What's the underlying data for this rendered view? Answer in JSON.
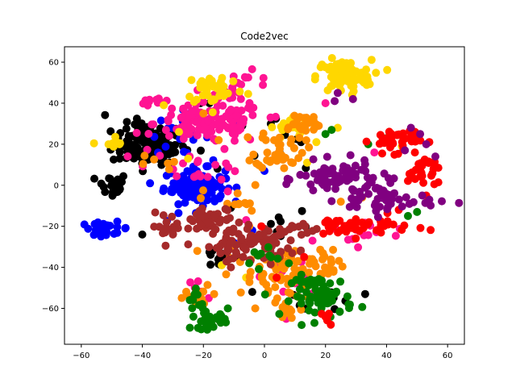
{
  "chart_data": {
    "type": "scatter",
    "title": "Code2vec",
    "xlabel": "",
    "ylabel": "",
    "xlim": [
      -65.5,
      65.5
    ],
    "ylim": [
      -77.5,
      67.5
    ],
    "xticks": [
      -60,
      -40,
      -20,
      0,
      20,
      40,
      60
    ],
    "yticks": [
      -60,
      -40,
      -20,
      0,
      20,
      40,
      60
    ],
    "xtick_labels": [
      "−60",
      "−40",
      "−20",
      "0",
      "20",
      "40",
      "60"
    ],
    "ytick_labels": [
      "−60",
      "−40",
      "−20",
      "0",
      "20",
      "40",
      "60"
    ],
    "grid": false,
    "legend": "none",
    "series": [
      {
        "color": "#000000",
        "clusters": [
          {
            "cx": -38,
            "cy": 20,
            "sx": 6,
            "sy": 5,
            "n": 120
          },
          {
            "cx": -50,
            "cy": 0,
            "sx": 2.5,
            "sy": 3,
            "n": 25
          },
          {
            "cx": -14,
            "cy": -35,
            "sx": 4,
            "sy": 3,
            "n": 12
          },
          {
            "cx": 20,
            "cy": -55,
            "sx": 6,
            "sy": 4,
            "n": 10
          },
          {
            "cx": 5,
            "cy": -20,
            "sx": 5,
            "sy": 5,
            "n": 8
          },
          {
            "cx": 0,
            "cy": 25,
            "sx": 15,
            "sy": 8,
            "n": 10
          }
        ],
        "points": [
          [
            -40,
            -24
          ],
          [
            -11,
            -11
          ],
          [
            -21,
            40
          ],
          [
            -18,
            40
          ],
          [
            33,
            -53
          ],
          [
            5,
            16
          ],
          [
            12,
            21
          ],
          [
            -4,
            -52
          ]
        ]
      },
      {
        "color": "#0000ff",
        "clusters": [
          {
            "cx": -23,
            "cy": 0,
            "sx": 5,
            "sy": 4,
            "n": 90
          },
          {
            "cx": -52,
            "cy": -21,
            "sx": 4,
            "sy": 1.5,
            "n": 25
          },
          {
            "cx": -28,
            "cy": 25,
            "sx": 5,
            "sy": 5,
            "n": 20
          },
          {
            "cx": -20,
            "cy": -10,
            "sx": 6,
            "sy": 4,
            "n": 12
          }
        ],
        "points": [
          [
            0,
            7
          ],
          [
            -10,
            -28
          ],
          [
            -9,
            29
          ],
          [
            -4,
            -22
          ]
        ]
      },
      {
        "color": "#ff1493",
        "clusters": [
          {
            "cx": -18,
            "cy": 30,
            "sx": 9,
            "sy": 5,
            "n": 120
          },
          {
            "cx": -35,
            "cy": 41,
            "sx": 3,
            "sy": 1.2,
            "n": 12
          },
          {
            "cx": -22,
            "cy": 10,
            "sx": 8,
            "sy": 4,
            "n": 20
          },
          {
            "cx": -7,
            "cy": 47,
            "sx": 5,
            "sy": 4,
            "n": 20
          },
          {
            "cx": 30,
            "cy": -23,
            "sx": 10,
            "sy": 3,
            "n": 15
          },
          {
            "cx": 10,
            "cy": -45,
            "sx": 5,
            "sy": 5,
            "n": 10
          },
          {
            "cx": -23,
            "cy": -50,
            "sx": 2,
            "sy": 3,
            "n": 6
          }
        ],
        "points": [
          [
            20,
            40
          ],
          [
            2,
            33
          ],
          [
            -12,
            -3
          ],
          [
            36,
            16
          ],
          [
            -6,
            -17
          ]
        ]
      },
      {
        "color": "#ffd700",
        "clusters": [
          {
            "cx": 26,
            "cy": 53,
            "sx": 4.5,
            "sy": 4,
            "n": 90
          },
          {
            "cx": -16,
            "cy": 47,
            "sx": 5,
            "sy": 4,
            "n": 35
          },
          {
            "cx": 10,
            "cy": 28,
            "sx": 4,
            "sy": 3,
            "n": 20
          },
          {
            "cx": -50,
            "cy": 20,
            "sx": 2,
            "sy": 2,
            "n": 8
          }
        ],
        "points": [
          [
            24,
            28
          ],
          [
            45,
            19
          ],
          [
            -25,
            13
          ],
          [
            -28,
            26
          ],
          [
            14,
            11
          ],
          [
            -33,
            39
          ],
          [
            -6,
            -45
          ],
          [
            17,
            21
          ],
          [
            -14,
            -39
          ]
        ]
      },
      {
        "color": "#ff8c00",
        "clusters": [
          {
            "cx": 5,
            "cy": 18,
            "sx": 4,
            "sy": 5,
            "n": 40
          },
          {
            "cx": 12,
            "cy": 30,
            "sx": 4,
            "sy": 3,
            "n": 25
          },
          {
            "cx": 2,
            "cy": -45,
            "sx": 8,
            "sy": 5,
            "n": 50
          },
          {
            "cx": 14,
            "cy": -37,
            "sx": 6,
            "sy": 4,
            "n": 30
          },
          {
            "cx": -10,
            "cy": -8,
            "sx": 5,
            "sy": 4,
            "n": 12
          },
          {
            "cx": -22,
            "cy": -55,
            "sx": 4,
            "sy": 3,
            "n": 12
          },
          {
            "cx": 8,
            "cy": -60,
            "sx": 4,
            "sy": 3,
            "n": 10
          },
          {
            "cx": -33,
            "cy": 10,
            "sx": 3,
            "sy": 3,
            "n": 6
          }
        ],
        "points": [
          [
            -20,
            35
          ],
          [
            -15,
            22
          ],
          [
            -10,
            -30
          ],
          [
            -3,
            -60
          ],
          [
            25,
            -8
          ],
          [
            32,
            -6
          ],
          [
            -22,
            -32
          ],
          [
            -5,
            -20
          ]
        ]
      },
      {
        "color": "#a52a2a",
        "clusters": [
          {
            "cx": -17,
            "cy": -18,
            "sx": 5,
            "sy": 3.5,
            "n": 45
          },
          {
            "cx": -1,
            "cy": -28,
            "sx": 6,
            "sy": 4,
            "n": 60
          },
          {
            "cx": -13,
            "cy": -30,
            "sx": 4,
            "sy": 3,
            "n": 20
          },
          {
            "cx": -31,
            "cy": -20,
            "sx": 3,
            "sy": 3,
            "n": 15
          },
          {
            "cx": 12,
            "cy": -22,
            "sx": 3,
            "sy": 2,
            "n": 8
          }
        ],
        "points": [
          [
            -30,
            -24
          ],
          [
            -7,
            -35
          ],
          [
            5,
            -35
          ],
          [
            -11,
            -40
          ]
        ]
      },
      {
        "color": "#008000",
        "clusters": [
          {
            "cx": 19,
            "cy": -54,
            "sx": 5,
            "sy": 5,
            "n": 70
          },
          {
            "cx": -18,
            "cy": -66,
            "sx": 3,
            "sy": 2,
            "n": 25
          },
          {
            "cx": -22,
            "cy": -55,
            "sx": 2,
            "sy": 3,
            "n": 10
          },
          {
            "cx": 2,
            "cy": -35,
            "sx": 3,
            "sy": 2,
            "n": 8
          }
        ],
        "points": [
          [
            20,
            25
          ],
          [
            22,
            27
          ],
          [
            34,
            20
          ],
          [
            40,
            23
          ],
          [
            50,
            -13
          ],
          [
            47,
            -15
          ],
          [
            8,
            -38
          ],
          [
            -12,
            -60
          ],
          [
            -5,
            -38
          ]
        ]
      },
      {
        "color": "#ff0000",
        "clusters": [
          {
            "cx": 43,
            "cy": 22,
            "sx": 4,
            "sy": 3,
            "n": 40
          },
          {
            "cx": 52,
            "cy": 7,
            "sx": 2.5,
            "sy": 4,
            "n": 30
          },
          {
            "cx": 30,
            "cy": -20,
            "sx": 9,
            "sy": 2.5,
            "n": 45
          },
          {
            "cx": 21,
            "cy": -63,
            "sx": 2,
            "sy": 2,
            "n": 6
          }
        ],
        "points": [
          [
            -1,
            -20
          ],
          [
            13,
            -35
          ],
          [
            4,
            -45
          ],
          [
            53,
            -5
          ],
          [
            44,
            -12
          ]
        ]
      },
      {
        "color": "#800080",
        "clusters": [
          {
            "cx": 23,
            "cy": 3,
            "sx": 6,
            "sy": 4,
            "n": 60
          },
          {
            "cx": 40,
            "cy": -7,
            "sx": 8,
            "sy": 4,
            "n": 45
          },
          {
            "cx": 33,
            "cy": 1,
            "sx": 4,
            "sy": 3,
            "n": 15
          }
        ],
        "points": [
          [
            23,
            41
          ],
          [
            29,
            42
          ],
          [
            24,
            45
          ],
          [
            53,
            20
          ],
          [
            51,
            25
          ],
          [
            48,
            28
          ],
          [
            46,
            17
          ],
          [
            56,
            14
          ],
          [
            54,
            -7
          ]
        ]
      }
    ]
  }
}
